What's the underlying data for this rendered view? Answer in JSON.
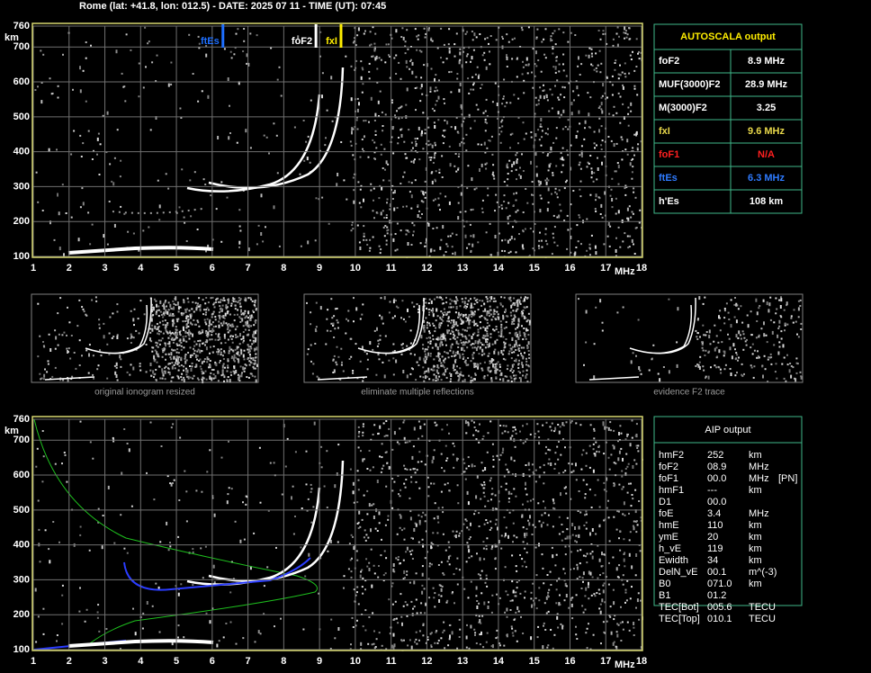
{
  "header": "Rome (lat: +41.8, lon: 012.5) - DATE: 2025 07 11 - TIME (UT): 07:45",
  "top_chart": {
    "x_unit": "MHz",
    "y_unit": "km",
    "xlim": [
      1,
      18
    ],
    "ylim": [
      100,
      760
    ],
    "xticks": [
      1,
      2,
      3,
      4,
      5,
      6,
      7,
      8,
      9,
      10,
      11,
      12,
      13,
      14,
      15,
      16,
      17,
      18
    ],
    "yticks": [
      100,
      200,
      300,
      400,
      500,
      600,
      700,
      760
    ],
    "grid": true,
    "markers": [
      {
        "label": "ftEs",
        "value": 6.3,
        "color": "#1e6fff"
      },
      {
        "label": "foF2",
        "value": 8.9,
        "color": "#ffffff"
      },
      {
        "label": "fxI",
        "value": 9.6,
        "color": "#ffee00"
      }
    ]
  },
  "autoscala": {
    "title": "AUTOSCALA output",
    "rows": [
      {
        "name": "foF2",
        "value": "8.9 MHz",
        "color": "#ffffff"
      },
      {
        "name": "MUF(3000)F2",
        "value": "28.9 MHz",
        "color": "#ffffff"
      },
      {
        "name": "M(3000)F2",
        "value": "3.25",
        "color": "#ffffff"
      },
      {
        "name": "fxI",
        "value": "9.6 MHz",
        "color": "#e8d84a"
      },
      {
        "name": "foF1",
        "value": "N/A",
        "color": "#ff2020"
      },
      {
        "name": "ftEs",
        "value": "6.3 MHz",
        "color": "#2e7bff"
      },
      {
        "name": "h'Es",
        "value": "108     km",
        "color": "#ffffff"
      }
    ]
  },
  "thumbnails": [
    "original ionogram resized",
    "eliminate multiple reflections",
    "evidence F2 trace"
  ],
  "bottom_chart": {
    "x_unit": "MHz",
    "y_unit": "km",
    "xlim": [
      1,
      18
    ],
    "ylim": [
      100,
      760
    ],
    "xticks": [
      1,
      2,
      3,
      4,
      5,
      6,
      7,
      8,
      9,
      10,
      11,
      12,
      13,
      14,
      15,
      16,
      17,
      18
    ],
    "yticks": [
      100,
      200,
      300,
      400,
      500,
      600,
      700,
      760
    ],
    "grid": true
  },
  "aip": {
    "title": "AIP output",
    "rows": [
      [
        "hmF2",
        "252",
        "km"
      ],
      [
        "foF2",
        "08.9",
        "MHz"
      ],
      [
        "foF1",
        "00.0",
        "MHz",
        "[PN]"
      ],
      [
        "hmF1",
        "---",
        "km"
      ],
      [
        "D1",
        "00.0"
      ],
      [
        "foE",
        "3.4",
        "MHz"
      ],
      [
        "hmE",
        "110",
        "km"
      ],
      [
        "ymE",
        "20",
        "km"
      ],
      [
        "h_vE",
        "119",
        "km"
      ],
      [
        "Ewidth",
        "34",
        "km"
      ],
      [
        "DelN_vE",
        "00.1",
        "m^(-3)"
      ],
      [
        "B0",
        "071.0",
        "km"
      ],
      [
        "B1",
        "01.2"
      ],
      [
        "TEC[Bot]",
        "005.6",
        "TECU"
      ],
      [
        "TEC[Top]",
        "010.1",
        "TECU"
      ]
    ]
  }
}
